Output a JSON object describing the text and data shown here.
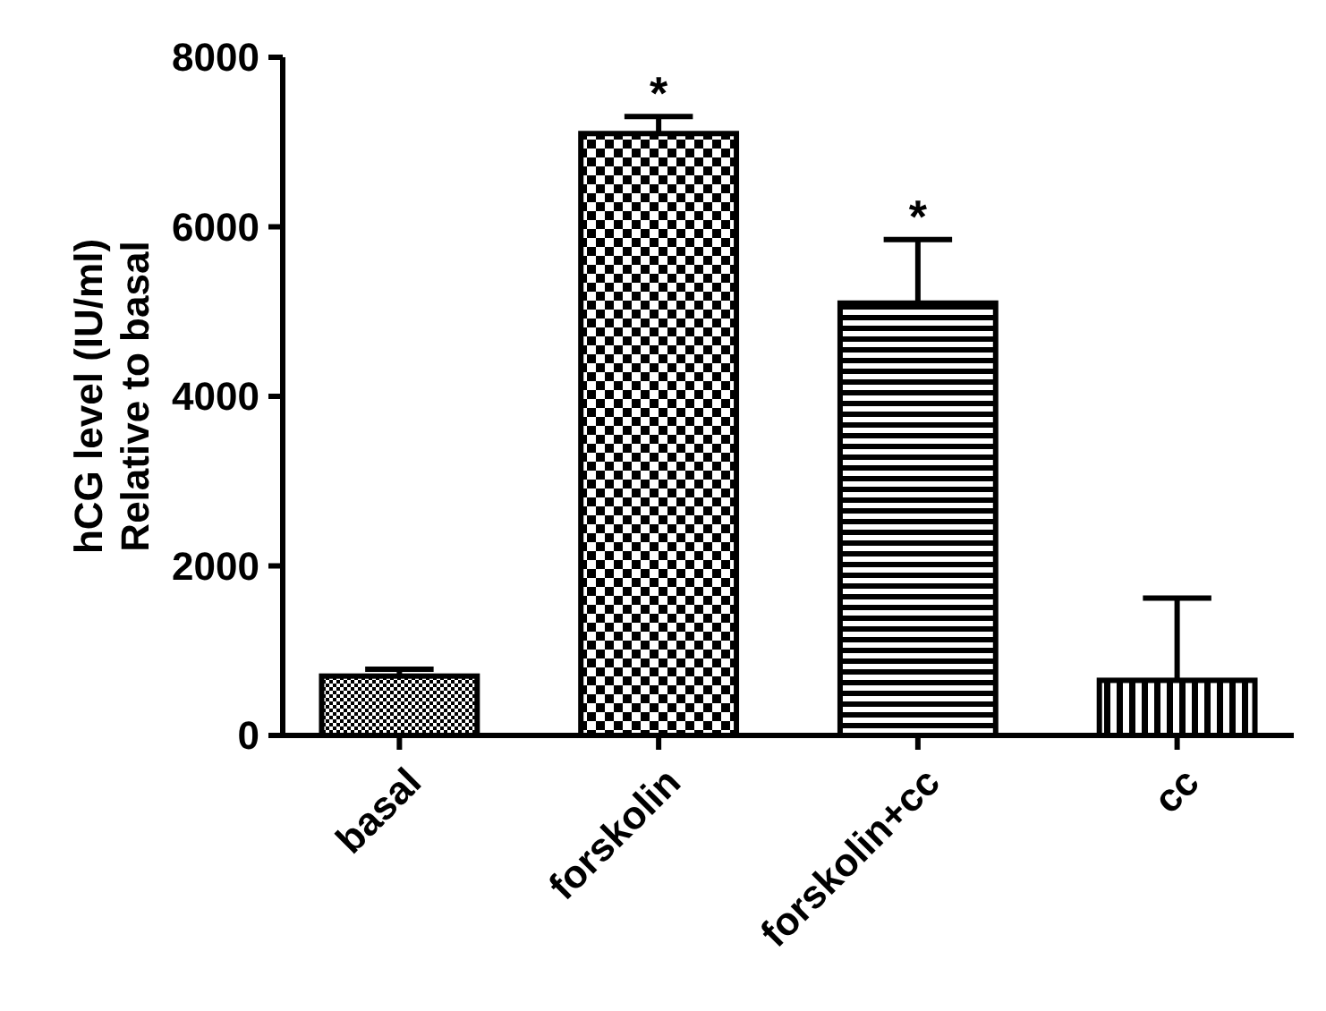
{
  "chart_data": {
    "type": "bar",
    "ylabel": "hCG level (IU/ml)\nRelative to basal",
    "categories": [
      "basal",
      "forskolin",
      "forskolin+cc",
      "cc"
    ],
    "values": [
      700,
      7100,
      5100,
      650
    ],
    "errors": [
      80,
      200,
      750,
      970
    ],
    "colors": [
      "#000000",
      "#000000",
      "#000000",
      "#000000"
    ],
    "ylim": [
      0,
      8000
    ],
    "yticks": [
      0,
      2000,
      4000,
      6000,
      8000
    ],
    "annotations": [
      {
        "text": "*",
        "x": "forskolin",
        "y": 7300
      },
      {
        "text": "*",
        "x": "forskolin+cc",
        "y": 5850
      }
    ]
  }
}
